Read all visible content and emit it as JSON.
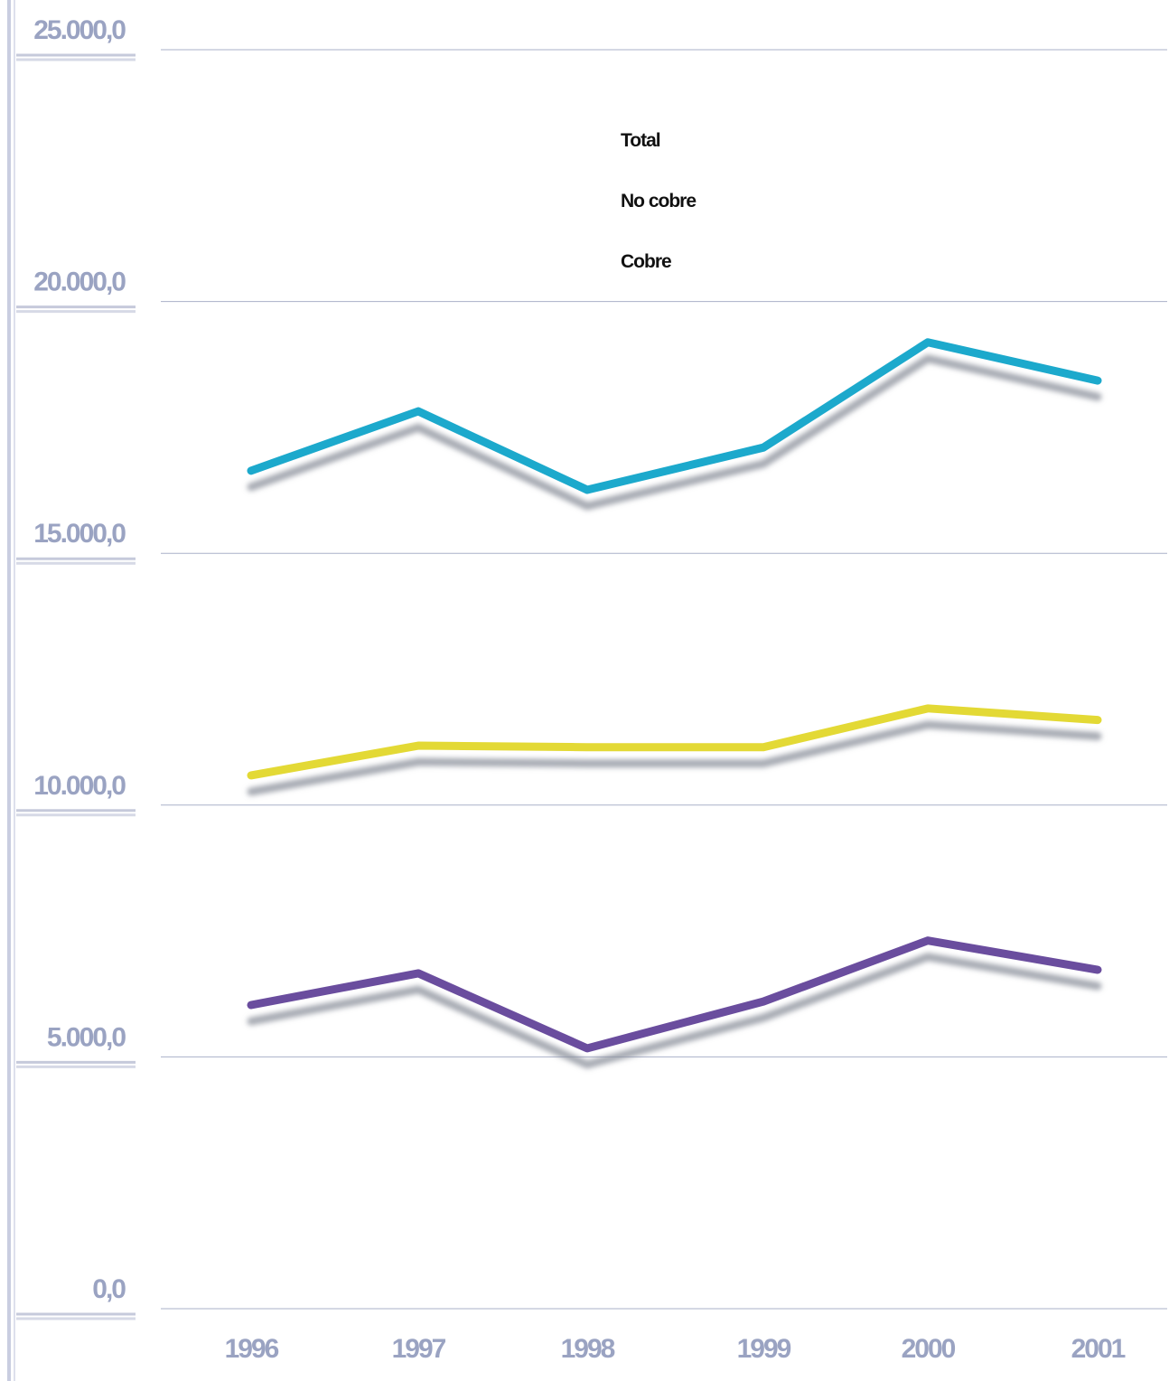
{
  "chart_data": {
    "type": "line",
    "categories": [
      "1996",
      "1997",
      "1998",
      "1999",
      "2000",
      "2001"
    ],
    "series": [
      {
        "name": "Total",
        "color": "#1fa9cc",
        "values": [
          16640,
          17820,
          16260,
          17100,
          19190,
          18430
        ]
      },
      {
        "name": "No cobre",
        "color": "#e3d936",
        "values": [
          10590,
          11180,
          11150,
          11150,
          11920,
          11690
        ]
      },
      {
        "name": "Cobre",
        "color": "#6a4d9e",
        "values": [
          6030,
          6660,
          5170,
          6100,
          7310,
          6730
        ]
      }
    ],
    "ylim": [
      0,
      25000
    ],
    "yticks": [
      {
        "value": 0,
        "label": "0,0"
      },
      {
        "value": 5000,
        "label": "5.000,0"
      },
      {
        "value": 10000,
        "label": "10.000,0"
      },
      {
        "value": 15000,
        "label": "15.000,0"
      },
      {
        "value": 20000,
        "label": "20.000,0"
      },
      {
        "value": 25000,
        "label": "25.000,0"
      }
    ],
    "grid": true,
    "legend": "top-left"
  }
}
